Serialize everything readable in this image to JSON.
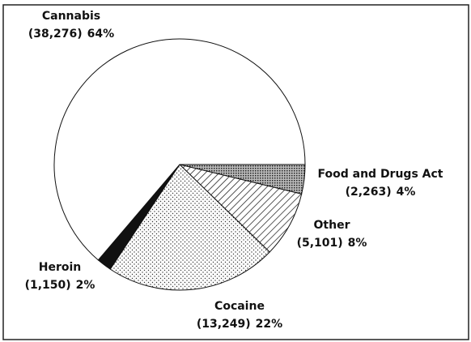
{
  "chart_data": {
    "type": "pie",
    "categories": [
      "Food and Drugs Act",
      "Other",
      "Cocaine",
      "Heroin",
      "Cannabis"
    ],
    "values": [
      2263,
      5101,
      13249,
      1150,
      38276
    ],
    "value_labels": [
      "(2,263)",
      "(5,101)",
      "(13,249)",
      "(1,150)",
      "(38,276)"
    ],
    "percents": [
      4,
      8,
      22,
      2,
      64
    ],
    "percent_labels": [
      "4%",
      "8%",
      "22%",
      "2%",
      "64%"
    ]
  }
}
